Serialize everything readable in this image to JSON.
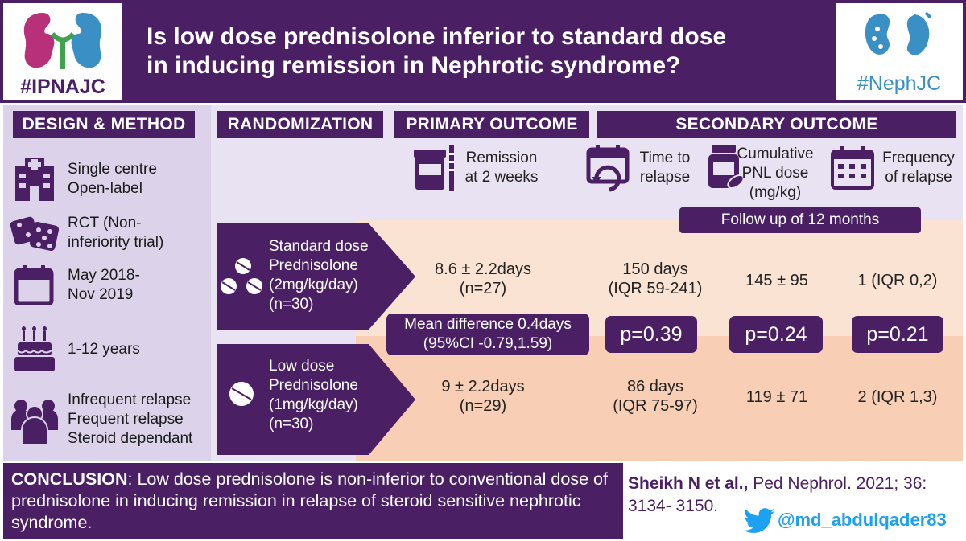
{
  "header": {
    "title_line1": "Is low dose prednisolone inferior to standard dose",
    "title_line2": "in inducing remission in Nephrotic syndrome?",
    "left_logo_tag": "#IPNAJC",
    "right_logo_tag": "#NephJC"
  },
  "columns": {
    "design": "DESIGN & METHOD",
    "randomization": "RANDOMIZATION",
    "primary": "PRIMARY OUTCOME",
    "secondary": "SECONDARY OUTCOME"
  },
  "outcome_labels": {
    "primary": "Remission\nat 2 weeks",
    "time_to_relapse": "Time to\nrelapse",
    "cumulative_dose": "Cumulative\nPNL dose\n(mg/kg)",
    "frequency": "Frequency\nof relapse"
  },
  "follow_up": "Follow up of 12 months",
  "design_items": [
    {
      "icon": "hospital-icon",
      "text": "Single centre\nOpen-label"
    },
    {
      "icon": "dice-icon",
      "text": "RCT (Non-\ninferiority trial)"
    },
    {
      "icon": "calendar-icon",
      "text": "May 2018-\nNov 2019"
    },
    {
      "icon": "cake-icon",
      "text": "1-12 years"
    },
    {
      "icon": "group-icon",
      "text": "Infrequent relapse\nFrequent relapse\nSteroid dependant"
    }
  ],
  "arms": [
    {
      "label": "Standard dose\nPrednisolone\n(2mg/kg/day)\n(n=30)",
      "remission": "8.6 ± 2.2days\n(n=27)",
      "time_to_relapse": "150 days\n(IQR 59-241)",
      "cumulative_dose": "145 ± 95",
      "frequency": "1 (IQR 0,2)"
    },
    {
      "label": "Low dose\nPrednisolone\n(1mg/kg/day)\n(n=30)",
      "remission": "9 ± 2.2days\n(n=29)",
      "time_to_relapse": "86 days\n(IQR 75-97)",
      "cumulative_dose": "119 ± 71",
      "frequency": "2 (IQR 1,3)"
    }
  ],
  "stats": {
    "mean_difference": "Mean difference 0.4days\n(95%CI -0.79,1.59)",
    "p_time": "p=0.39",
    "p_dose": "p=0.24",
    "p_freq": "p=0.21"
  },
  "conclusion": {
    "label": "CONCLUSION",
    "text": ": Low dose prednisolone is non-inferior to conventional dose of prednisolone in inducing remission in relapse of steroid sensitive nephrotic syndrome."
  },
  "citation": {
    "authors": "Sheikh N et al.,",
    "journal": " Ped Nephrol. 2021; 36: 3134- 3150."
  },
  "twitter_handle": "@md_abdulqader83",
  "colors": {
    "purple": "#4a1f63",
    "lavender": "#dcd3ea",
    "peach": "#fbe3d3",
    "twitter_blue": "#1da1f2"
  }
}
